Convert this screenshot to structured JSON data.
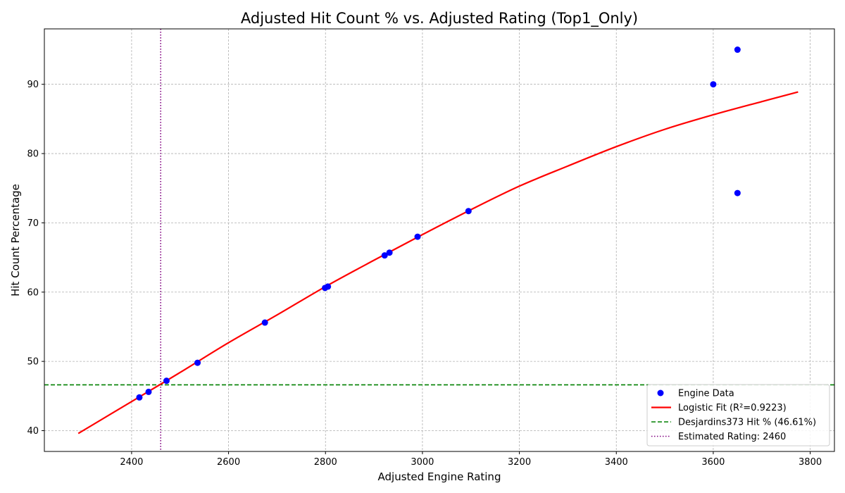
{
  "chart_data": {
    "type": "scatter",
    "title": "Adjusted Hit Count % vs. Adjusted Rating (Top1_Only)",
    "xlabel": "Adjusted Engine Rating",
    "ylabel": "Hit Count Percentage",
    "xlim": [
      2220,
      3850
    ],
    "ylim": [
      37,
      98
    ],
    "xticks": [
      2400,
      2600,
      2800,
      3000,
      3200,
      3400,
      3600,
      3800
    ],
    "yticks": [
      40,
      50,
      60,
      70,
      80,
      90
    ],
    "grid": true,
    "legend_position": "lower-right",
    "series": [
      {
        "name": "Engine Data",
        "kind": "scatter",
        "color": "#0000ff",
        "points": [
          [
            2416,
            44.8
          ],
          [
            2435,
            45.6
          ],
          [
            2472,
            47.2
          ],
          [
            2536,
            49.8
          ],
          [
            2675,
            55.6
          ],
          [
            2799,
            60.6
          ],
          [
            2805,
            60.8
          ],
          [
            2922,
            65.3
          ],
          [
            2932,
            65.7
          ],
          [
            2990,
            68.0
          ],
          [
            3095,
            71.7
          ],
          [
            3600,
            90.0
          ],
          [
            3650,
            95.0
          ],
          [
            3650,
            74.3
          ]
        ]
      },
      {
        "name": "Logistic Fit (R²=0.9223)",
        "kind": "line",
        "color": "#ff0000",
        "points": [
          [
            2290,
            39.6
          ],
          [
            2400,
            44.2
          ],
          [
            2500,
            48.4
          ],
          [
            2600,
            52.7
          ],
          [
            2700,
            56.7
          ],
          [
            2800,
            60.8
          ],
          [
            2900,
            64.6
          ],
          [
            3000,
            68.3
          ],
          [
            3100,
            71.9
          ],
          [
            3200,
            75.3
          ],
          [
            3300,
            78.2
          ],
          [
            3400,
            81.0
          ],
          [
            3500,
            83.5
          ],
          [
            3600,
            85.6
          ],
          [
            3700,
            87.5
          ],
          [
            3775,
            88.9
          ]
        ]
      },
      {
        "name": "Desjardins373 Hit % (46.61%)",
        "kind": "hline",
        "color": "#008000",
        "value": 46.61
      },
      {
        "name": "Estimated Rating: 2460",
        "kind": "vline",
        "color": "#800080",
        "value": 2460
      }
    ]
  }
}
